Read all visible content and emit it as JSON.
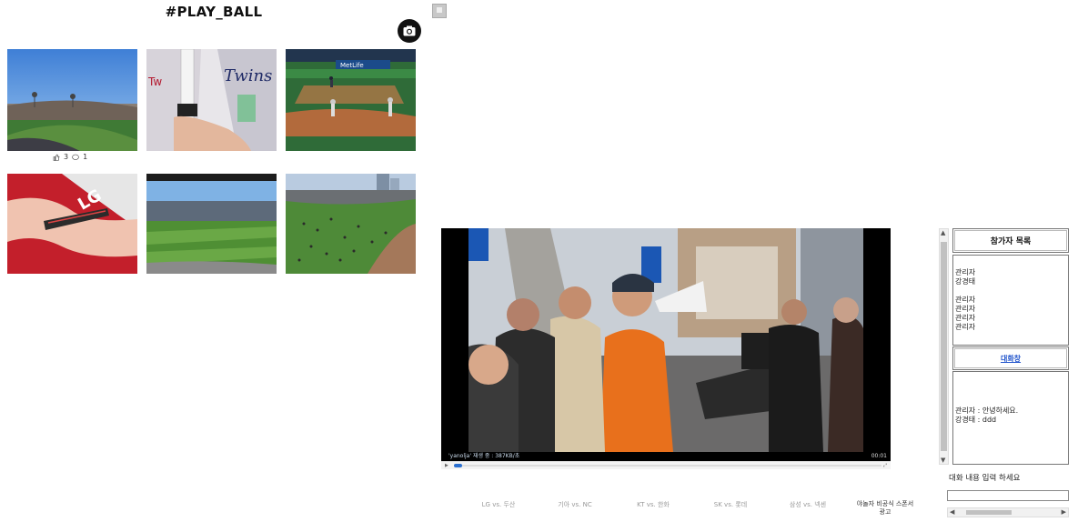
{
  "header": {
    "title": "#PLAY_BALL",
    "camera_icon": "camera-icon"
  },
  "photos": {
    "first_likes": "3",
    "first_comments": "1",
    "like_icon": "thumbs-up-icon",
    "comment_icon": "speech-bubble-icon"
  },
  "video": {
    "status": "'yanolja' 재생 중 : 387KB/초",
    "time": "00:01",
    "progress": 0.02
  },
  "tabs": [
    {
      "label": "LG vs. 두산"
    },
    {
      "label": "기아 vs. NC"
    },
    {
      "label": "KT vs. 한화"
    },
    {
      "label": "SK vs. 롯데"
    },
    {
      "label": "삼성 vs. 넥센"
    },
    {
      "label": "야놀자 비공식 스폰서 광고"
    }
  ],
  "participants": {
    "title": "참가자 목록",
    "users": [
      "관리자",
      "강경태",
      "",
      "관리자",
      "관리자",
      "관리자",
      "관리자"
    ]
  },
  "chat": {
    "title": "대화창",
    "messages": [
      "관리자 : 안녕하세요.",
      "강경태 : ddd"
    ],
    "prompt": "대화 내용 입력 하세요",
    "input_value": ""
  },
  "colors": {
    "link": "#2255cc",
    "progress": "#2a6fd0"
  }
}
